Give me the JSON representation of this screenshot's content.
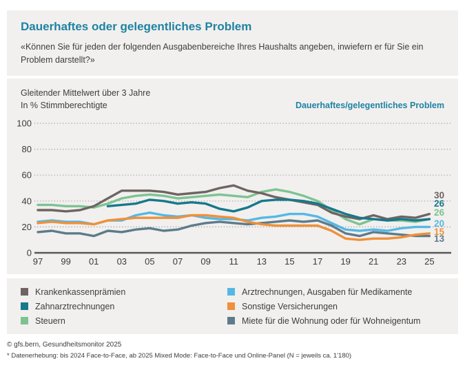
{
  "header": {
    "title": "Dauerhaftes oder gelegentliches Problem",
    "subtitle": "«Können Sie für jeden der folgenden Ausgabenbereiche Ihres Haushalts angeben, inwiefern er für Sie ein Problem darstellt?»"
  },
  "chart_header": {
    "note_line1": "Gleitender Mittelwert über 3 Jahre",
    "note_line2": "In % Stimmberechtigte",
    "right_label": "Dauerhaftes/gelegentliches Problem"
  },
  "chart_data": {
    "type": "line",
    "x": [
      1997,
      1998,
      1999,
      2000,
      2001,
      2002,
      2003,
      2004,
      2005,
      2006,
      2007,
      2008,
      2009,
      2010,
      2011,
      2012,
      2013,
      2014,
      2015,
      2016,
      2017,
      2018,
      2019,
      2020,
      2021,
      2022,
      2023,
      2024,
      2025
    ],
    "x_tick_labels": [
      "97",
      "99",
      "01",
      "03",
      "05",
      "07",
      "09",
      "11",
      "13",
      "15",
      "17",
      "19",
      "21",
      "23",
      "25"
    ],
    "ylim": [
      0,
      100
    ],
    "yticks": [
      0,
      20,
      40,
      60,
      80,
      100
    ],
    "grid": "horizontal-dotted",
    "legend_position": "bottom",
    "series": [
      {
        "name": "Krankenkassenprämien",
        "color": "#6e6461",
        "end_label": "30",
        "values": [
          33,
          33,
          32,
          33,
          36,
          42,
          48,
          48,
          48,
          47,
          45,
          46,
          47,
          50,
          52,
          48,
          46,
          43,
          41,
          39,
          37,
          31,
          28,
          26,
          29,
          26,
          28,
          27,
          30
        ]
      },
      {
        "name": "Zahnarztrechnungen",
        "color": "#17788c",
        "end_label": "26",
        "values": [
          null,
          null,
          null,
          null,
          null,
          36,
          37,
          38,
          41,
          40,
          38,
          39,
          38,
          34,
          32,
          35,
          40,
          41,
          41,
          40,
          38,
          34,
          30,
          27,
          26,
          25,
          26,
          25,
          26
        ]
      },
      {
        "name": "Steuern",
        "color": "#7dc392",
        "end_label": "26",
        "values": [
          37,
          37,
          36,
          36,
          35,
          38,
          42,
          44,
          45,
          44,
          42,
          43,
          44,
          45,
          44,
          43,
          47,
          49,
          47,
          44,
          40,
          33,
          26,
          22,
          26,
          25,
          25,
          24,
          26
        ]
      },
      {
        "name": "Arztrechnungen, Ausgaben für Medikamente",
        "color": "#55b8e4",
        "end_label": "20",
        "values": [
          24,
          25,
          24,
          24,
          22,
          25,
          25,
          29,
          31,
          29,
          28,
          29,
          27,
          26,
          26,
          25,
          27,
          28,
          30,
          30,
          28,
          23,
          18,
          17,
          18,
          17,
          19,
          20,
          20
        ]
      },
      {
        "name": "Sonstige Versicherungen",
        "color": "#f0903a",
        "end_label": "15",
        "values": [
          23,
          24,
          23,
          23,
          22,
          25,
          26,
          27,
          27,
          27,
          27,
          29,
          29,
          28,
          27,
          24,
          22,
          21,
          21,
          21,
          21,
          17,
          11,
          10,
          11,
          11,
          12,
          14,
          15
        ]
      },
      {
        "name": "Miete für die Wohnung oder für Wohneigentum",
        "color": "#5d7b8b",
        "end_label": "13",
        "values": [
          16,
          17,
          15,
          15,
          13,
          17,
          16,
          18,
          19,
          17,
          18,
          21,
          23,
          24,
          23,
          22,
          23,
          24,
          25,
          24,
          25,
          21,
          15,
          13,
          16,
          15,
          14,
          13,
          13
        ]
      }
    ],
    "draw_order": [
      2,
      0,
      3,
      5,
      4,
      1
    ]
  },
  "legend": {
    "columns": [
      [
        0,
        1,
        2
      ],
      [
        3,
        4,
        5
      ]
    ]
  },
  "footer": {
    "copyright": "© gfs.bern, Gesundheitsmonitor 2025",
    "note": "* Datenerhebung: bis 2024 Face-to-Face, ab 2025 Mixed Mode: Face-to-Face und Online-Panel (N = jeweils ca. 1'180)"
  }
}
